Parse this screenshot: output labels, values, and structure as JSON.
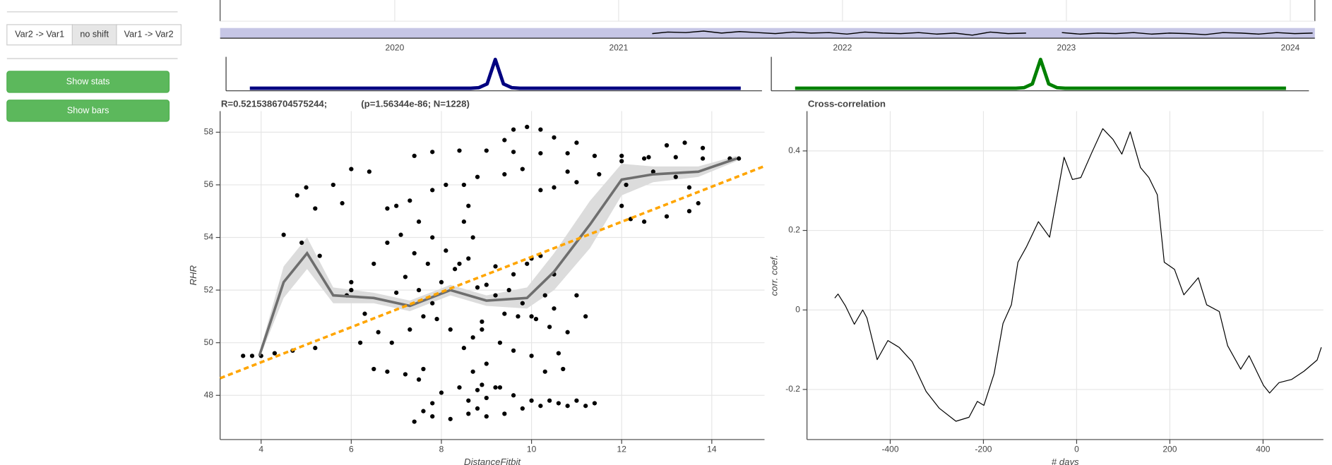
{
  "controls": {
    "shift_buttons": [
      "Var2 -> Var1",
      "no shift",
      "Var1 -> Var2"
    ],
    "action_buttons": [
      "Show stats",
      "Show bars"
    ]
  },
  "chart_data": [
    {
      "type": "line",
      "color": "#000000",
      "fill": "#c6c6e6",
      "x": [
        2021.15,
        2021.22,
        2021.3,
        2021.38,
        2021.46,
        2021.54,
        2021.62,
        2021.7,
        2021.78,
        2021.86,
        2021.94,
        2022.02,
        2022.1,
        2022.18,
        2022.26,
        2022.34,
        2022.42,
        2022.5,
        2022.58,
        2022.66,
        2022.74,
        2022.82,
        2022.9,
        2022.98,
        2023.06,
        2023.14,
        2023.22,
        2023.3,
        2023.38,
        2023.46,
        2023.54,
        2023.62,
        2023.7,
        2023.78,
        2023.86,
        2023.94,
        2024.02,
        2024.1
      ],
      "values": [
        0.45,
        0.6,
        0.55,
        0.7,
        0.5,
        0.65,
        0.55,
        0.45,
        0.6,
        0.5,
        0.55,
        0.4,
        0.6,
        0.5,
        0.45,
        0.55,
        0.4,
        0.5,
        0.3,
        0.6,
        0.45,
        0.5,
        null,
        0.55,
        0.4,
        0.5,
        0.45,
        0.55,
        0.4,
        0.5,
        0.45,
        0.35,
        0.55,
        0.5,
        0.4,
        0.55,
        0.45,
        0.5
      ],
      "xlim": [
        2019.22,
        2024.11
      ],
      "ylim": [
        0,
        1
      ],
      "xticks": [
        2020,
        2021,
        2022,
        2023,
        2024
      ]
    },
    {
      "type": "line",
      "color": "#000080",
      "ylim": [
        0,
        1
      ],
      "values": [
        0,
        0,
        0,
        0,
        0,
        0,
        0,
        0,
        0,
        0,
        0,
        0,
        0,
        0,
        0,
        0,
        0,
        0,
        0,
        0,
        0,
        0,
        0,
        0,
        0,
        0,
        0,
        0,
        0.02,
        0.15,
        1,
        0.15,
        0.02,
        0,
        0,
        0,
        0,
        0,
        0,
        0,
        0,
        0,
        0,
        0,
        0,
        0,
        0,
        0,
        0,
        0,
        0,
        0,
        0,
        0,
        0,
        0,
        0,
        0,
        0,
        0,
        0
      ]
    },
    {
      "type": "line",
      "color": "#008000",
      "ylim": [
        0,
        1
      ],
      "values": [
        0,
        0,
        0,
        0,
        0,
        0,
        0,
        0,
        0,
        0,
        0,
        0,
        0,
        0,
        0,
        0,
        0,
        0,
        0,
        0,
        0,
        0,
        0,
        0,
        0,
        0,
        0,
        0,
        0.02,
        0.15,
        1,
        0.15,
        0.02,
        0,
        0,
        0,
        0,
        0,
        0,
        0,
        0,
        0,
        0,
        0,
        0,
        0,
        0,
        0,
        0,
        0,
        0,
        0,
        0,
        0,
        0,
        0,
        0,
        0,
        0,
        0,
        0
      ]
    },
    {
      "type": "scatter",
      "title": "R=0.5215386704575244;",
      "subtitle": "(p=1.56344e-86; N=1228)",
      "x_label": "DistanceFitbit",
      "y_label": "RHR",
      "color": "#000000",
      "grid": true,
      "xlim": [
        3.09,
        15.17
      ],
      "ylim": [
        46.32,
        58.8
      ],
      "xticks": [
        4,
        6,
        8,
        10,
        12,
        14
      ],
      "yticks": [
        48,
        50,
        52,
        54,
        56,
        58
      ],
      "x": [
        7.4,
        7.8,
        8.4,
        9,
        9.6,
        10.2,
        10.8,
        11.4,
        12,
        12.6,
        13.2,
        13.8,
        14.4,
        14.6,
        12.0,
        12.5,
        9.4,
        9.6,
        9.9,
        10.2,
        10.5,
        11.0,
        13,
        13.4,
        13.8,
        12.7,
        13.2,
        13.5,
        13.7,
        13.5,
        13.0,
        12.5,
        12.2,
        12.0,
        12.1,
        11.5,
        11.0,
        10.5,
        10.2,
        10.8,
        9.8,
        9.4,
        8.8,
        8.5,
        4.0,
        3.8,
        3.6,
        4.3,
        4.7,
        5.2,
        4.5,
        4.8,
        5.0,
        5.6,
        6.0,
        5.8,
        5.3,
        4.9,
        6.4,
        6.8,
        7.0,
        5.2,
        6.0,
        5.9,
        6.2,
        6.5,
        6.8,
        7.2,
        7.6,
        6.5,
        6.8,
        7.1,
        7.4,
        7.2,
        7.0,
        7.5,
        7.8,
        8.0,
        8.3,
        8.6,
        8.7,
        8.6,
        8.5,
        8.4,
        8.8,
        9.0,
        9.2,
        9.5,
        9.8,
        10.0,
        10.3,
        10.5,
        10.0,
        9.6,
        9.2,
        8.9,
        8.7,
        8.5,
        8.2,
        7.9,
        7.6,
        7.3,
        6.9,
        6.6,
        6.3,
        6.0,
        7.7,
        8.1,
        7.8,
        7.5,
        7.3,
        7.8,
        8.1,
        8.9,
        9.3,
        9.6,
        9.0,
        8.7,
        9.2,
        8.9,
        9.0,
        8.8,
        8.6,
        10.7,
        10.3,
        10.0,
        10.6,
        10.8,
        10.4,
        10.1,
        9.7,
        9.4,
        10.5,
        9.9,
        10.2,
        11.0,
        11.2,
        7.4,
        7.8,
        8.2,
        8.6,
        9.0,
        9.4,
        9.8,
        10.2,
        10.6,
        11.0,
        11.4,
        11.2,
        10.8,
        10.4,
        10.0,
        9.6,
        9.3,
        8.8,
        8.4,
        8.0,
        7.8,
        7.6,
        7.5
      ],
      "y": [
        57.1,
        57.25,
        57.3,
        57.3,
        57.25,
        57.2,
        57.2,
        57.1,
        57.1,
        57.05,
        57.05,
        57.0,
        57.0,
        57.0,
        56.9,
        57.0,
        57.7,
        58.1,
        58.2,
        58.1,
        57.8,
        57.6,
        57.5,
        57.6,
        57.4,
        56.5,
        56.3,
        55.9,
        55.3,
        55.0,
        54.8,
        54.6,
        54.7,
        55.2,
        56.0,
        56.4,
        56.1,
        55.9,
        55.8,
        56.5,
        56.6,
        56.4,
        56.3,
        56.0,
        49.5,
        49.5,
        49.5,
        49.6,
        49.7,
        49.8,
        54.1,
        55.6,
        55.9,
        56.0,
        56.6,
        55.3,
        53.3,
        53.8,
        56.5,
        55.1,
        55.2,
        55.1,
        52.0,
        51.8,
        50.0,
        49.0,
        48.9,
        48.8,
        49.0,
        53.0,
        53.8,
        54.1,
        53.4,
        52.5,
        51.9,
        52.0,
        51.5,
        52.3,
        52.8,
        53.2,
        54.0,
        55.2,
        54.6,
        53.0,
        52.1,
        52.2,
        51.8,
        52.0,
        51.5,
        51.0,
        51.8,
        52.6,
        53.2,
        52.6,
        52.9,
        50.8,
        50.2,
        49.8,
        50.5,
        50.9,
        51.0,
        50.5,
        50.0,
        50.4,
        51.1,
        52.3,
        53.0,
        53.5,
        54.0,
        54.6,
        55.4,
        55.8,
        56.0,
        50.5,
        50.0,
        49.7,
        49.2,
        48.9,
        48.3,
        48.4,
        47.9,
        47.5,
        47.8,
        49.0,
        48.9,
        49.5,
        49.6,
        50.4,
        50.6,
        50.9,
        51.0,
        51.1,
        51.3,
        53.0,
        53.3,
        51.8,
        51.0,
        47.0,
        47.2,
        47.1,
        47.3,
        47.2,
        47.3,
        47.5,
        47.6,
        47.7,
        47.8,
        47.7,
        47.6,
        47.6,
        47.8,
        47.8,
        48.0,
        48.3,
        48.2,
        48.3,
        48.1,
        47.7,
        47.4,
        48.6
      ],
      "overlays": [
        {
          "color": "#6e6e6e",
          "band_color": "#dcdcdc",
          "x": [
            3.96,
            4.5,
            5.02,
            5.6,
            6.5,
            7.3,
            8.2,
            9.0,
            9.9,
            10.5,
            11.3,
            12.0,
            12.7,
            13.7,
            14.55
          ],
          "values": [
            49.5,
            52.3,
            53.4,
            51.8,
            51.7,
            51.4,
            52.0,
            51.6,
            51.7,
            52.7,
            54.5,
            56.2,
            56.4,
            56.5,
            57.0
          ],
          "lower": [
            49.4,
            51.7,
            52.8,
            51.5,
            51.5,
            51.2,
            51.8,
            51.4,
            51.3,
            52.0,
            53.6,
            55.6,
            56.1,
            56.3,
            56.9
          ],
          "upper": [
            49.6,
            52.9,
            54.0,
            52.1,
            51.9,
            51.6,
            52.2,
            51.8,
            52.1,
            53.4,
            55.4,
            56.8,
            56.7,
            56.7,
            57.1
          ]
        },
        {
          "color": "#ffa500",
          "dashed": true,
          "x": [
            3.09,
            15.17
          ],
          "values": [
            48.65,
            56.71
          ]
        }
      ]
    },
    {
      "type": "line",
      "title": "Cross-correlation",
      "x_label": "# days",
      "y_label": "corr. coef.",
      "color": "#000000",
      "grid": true,
      "xlim": [
        -578.6,
        529.4
      ],
      "ylim": [
        -0.326,
        0.5
      ],
      "xticks": [
        -400,
        -200,
        0,
        200,
        400
      ],
      "yticks": [
        -0.2,
        0,
        0.2,
        0.4
      ],
      "x": [
        -519,
        -512,
        -496,
        -477,
        -459,
        -450,
        -428,
        -405,
        -381,
        -353,
        -323,
        -295,
        -259,
        -231,
        -213,
        -199,
        -177,
        -158,
        -140,
        -126,
        -108,
        -82,
        -58,
        -27,
        -9,
        9,
        33,
        56,
        78,
        97,
        115,
        137,
        155,
        173,
        188,
        210,
        230,
        261,
        279,
        306,
        324,
        352,
        370,
        401,
        414,
        434,
        461,
        488,
        516,
        525
      ],
      "values": [
        0.03,
        0.04,
        0.01,
        -0.036,
        0.0,
        -0.02,
        -0.125,
        -0.077,
        -0.094,
        -0.13,
        -0.205,
        -0.247,
        -0.28,
        -0.27,
        -0.23,
        -0.24,
        -0.16,
        -0.034,
        0.013,
        0.12,
        0.158,
        0.222,
        0.183,
        0.384,
        0.328,
        0.333,
        0.397,
        0.456,
        0.429,
        0.392,
        0.448,
        0.358,
        0.333,
        0.29,
        0.12,
        0.102,
        0.038,
        0.081,
        0.013,
        -0.004,
        -0.09,
        -0.149,
        -0.115,
        -0.19,
        -0.209,
        -0.183,
        -0.175,
        -0.154,
        -0.126,
        -0.094
      ]
    }
  ]
}
